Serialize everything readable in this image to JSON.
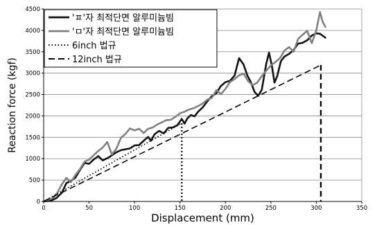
{
  "chart_data": {
    "type": "line",
    "title": "",
    "xlabel": "Displacement (mm)",
    "ylabel": "Reaction force (kgf)",
    "xlim": [
      0,
      350
    ],
    "ylim": [
      0,
      4500
    ],
    "xticks": [
      0,
      50,
      100,
      150,
      200,
      250,
      300,
      350
    ],
    "yticks": [
      0,
      500,
      1000,
      1500,
      2000,
      2500,
      3000,
      3500,
      4000,
      4500
    ],
    "grid": "horizontal",
    "legend_position": "top-left",
    "series": [
      {
        "name": "'ㅍ'자 최적단면 알루미늄빔",
        "color": "#111111",
        "style": "solid",
        "points": [
          [
            0,
            0
          ],
          [
            8,
            20
          ],
          [
            14,
            80
          ],
          [
            20,
            200
          ],
          [
            25,
            430
          ],
          [
            30,
            480
          ],
          [
            35,
            560
          ],
          [
            40,
            740
          ],
          [
            45,
            900
          ],
          [
            50,
            880
          ],
          [
            55,
            980
          ],
          [
            60,
            1060
          ],
          [
            65,
            960
          ],
          [
            70,
            1010
          ],
          [
            75,
            1080
          ],
          [
            80,
            1150
          ],
          [
            85,
            1200
          ],
          [
            90,
            1220
          ],
          [
            95,
            1240
          ],
          [
            100,
            1310
          ],
          [
            105,
            1320
          ],
          [
            110,
            1420
          ],
          [
            115,
            1510
          ],
          [
            118,
            1420
          ],
          [
            122,
            1570
          ],
          [
            127,
            1650
          ],
          [
            132,
            1590
          ],
          [
            137,
            1720
          ],
          [
            142,
            1730
          ],
          [
            147,
            1780
          ],
          [
            152,
            1930
          ],
          [
            155,
            1820
          ],
          [
            158,
            1940
          ],
          [
            162,
            2020
          ],
          [
            166,
            1990
          ],
          [
            170,
            2100
          ],
          [
            175,
            2200
          ],
          [
            180,
            2340
          ],
          [
            185,
            2460
          ],
          [
            190,
            2530
          ],
          [
            195,
            2700
          ],
          [
            200,
            2790
          ],
          [
            205,
            2820
          ],
          [
            210,
            2940
          ],
          [
            215,
            3350
          ],
          [
            220,
            3200
          ],
          [
            224,
            2950
          ],
          [
            228,
            2790
          ],
          [
            232,
            2560
          ],
          [
            236,
            2470
          ],
          [
            240,
            2610
          ],
          [
            245,
            3230
          ],
          [
            248,
            3480
          ],
          [
            251,
            3180
          ],
          [
            254,
            2780
          ],
          [
            257,
            2930
          ],
          [
            261,
            3280
          ],
          [
            265,
            3390
          ],
          [
            270,
            3450
          ],
          [
            275,
            3540
          ],
          [
            280,
            3690
          ],
          [
            285,
            3710
          ],
          [
            290,
            3770
          ],
          [
            295,
            3880
          ],
          [
            300,
            3930
          ],
          [
            304,
            3920
          ],
          [
            308,
            3860
          ],
          [
            310,
            3830
          ]
        ]
      },
      {
        "name": "'ㅁ'자 최적단면 알루미늄빔",
        "color": "#808080",
        "style": "solid",
        "points": [
          [
            0,
            0
          ],
          [
            10,
            80
          ],
          [
            15,
            200
          ],
          [
            20,
            400
          ],
          [
            25,
            550
          ],
          [
            30,
            450
          ],
          [
            35,
            620
          ],
          [
            40,
            760
          ],
          [
            45,
            930
          ],
          [
            50,
            980
          ],
          [
            55,
            1080
          ],
          [
            60,
            1180
          ],
          [
            65,
            1260
          ],
          [
            70,
            1390
          ],
          [
            75,
            1100
          ],
          [
            80,
            1230
          ],
          [
            85,
            1490
          ],
          [
            90,
            1580
          ],
          [
            95,
            1710
          ],
          [
            100,
            1660
          ],
          [
            105,
            1700
          ],
          [
            110,
            1600
          ],
          [
            115,
            1700
          ],
          [
            120,
            1730
          ],
          [
            125,
            1800
          ],
          [
            130,
            1850
          ],
          [
            135,
            1900
          ],
          [
            140,
            1910
          ],
          [
            145,
            1980
          ],
          [
            150,
            2060
          ],
          [
            155,
            2100
          ],
          [
            160,
            2150
          ],
          [
            165,
            2180
          ],
          [
            170,
            2230
          ],
          [
            175,
            2290
          ],
          [
            180,
            2380
          ],
          [
            185,
            2420
          ],
          [
            190,
            2600
          ],
          [
            195,
            2510
          ],
          [
            200,
            2630
          ],
          [
            205,
            2790
          ],
          [
            210,
            2860
          ],
          [
            215,
            2950
          ],
          [
            220,
            2990
          ],
          [
            225,
            2810
          ],
          [
            230,
            2720
          ],
          [
            235,
            2780
          ],
          [
            240,
            2930
          ],
          [
            245,
            3060
          ],
          [
            250,
            3180
          ],
          [
            255,
            3260
          ],
          [
            260,
            3350
          ],
          [
            265,
            3530
          ],
          [
            270,
            3610
          ],
          [
            275,
            3500
          ],
          [
            280,
            3800
          ],
          [
            285,
            3900
          ],
          [
            290,
            3990
          ],
          [
            295,
            3700
          ],
          [
            300,
            4000
          ],
          [
            304,
            4430
          ],
          [
            307,
            4200
          ],
          [
            310,
            4080
          ]
        ]
      },
      {
        "name": "6inch 법규",
        "color": "#000000",
        "style": "dotted",
        "points": [
          [
            0,
            0
          ],
          [
            152,
            1830
          ]
        ],
        "drop_to": 0
      },
      {
        "name": "12inch 법규",
        "color": "#000000",
        "style": "dashed",
        "points": [
          [
            0,
            0
          ],
          [
            305,
            3190
          ]
        ],
        "drop_to": 0
      }
    ]
  }
}
